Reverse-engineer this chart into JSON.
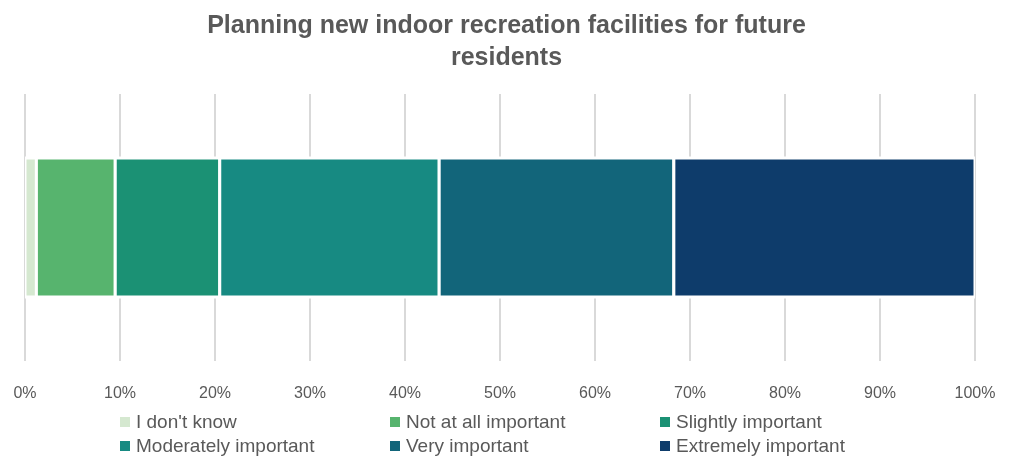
{
  "chart_data": {
    "type": "bar",
    "orientation": "horizontal",
    "stacked": true,
    "title": "Planning new indoor recreation facilities for future residents",
    "categories": [
      null
    ],
    "series": [
      {
        "name": "I don't know",
        "color": "#d5e8d0",
        "values": [
          1.2
        ]
      },
      {
        "name": "Not at all important",
        "color": "#57b46e",
        "values": [
          8.3
        ]
      },
      {
        "name": "Slightly important",
        "color": "#1b9174",
        "values": [
          11.0
        ]
      },
      {
        "name": "Moderately important",
        "color": "#178a82",
        "values": [
          23.1
        ]
      },
      {
        "name": "Very important",
        "color": "#12657a",
        "values": [
          24.7
        ]
      },
      {
        "name": "Extremely important",
        "color": "#0e3c6b",
        "values": [
          31.7
        ]
      }
    ],
    "xlim": [
      0,
      100
    ],
    "xticks": [
      {
        "value": 0,
        "label": "0%"
      },
      {
        "value": 10,
        "label": "10%"
      },
      {
        "value": 20,
        "label": "20%"
      },
      {
        "value": 30,
        "label": "30%"
      },
      {
        "value": 40,
        "label": "40%"
      },
      {
        "value": 50,
        "label": "50%"
      },
      {
        "value": 60,
        "label": "60%"
      },
      {
        "value": 70,
        "label": "70%"
      },
      {
        "value": 80,
        "label": "80%"
      },
      {
        "value": 90,
        "label": "90%"
      },
      {
        "value": 100,
        "label": "100%"
      }
    ],
    "grid": "x",
    "legend": "bottom"
  }
}
